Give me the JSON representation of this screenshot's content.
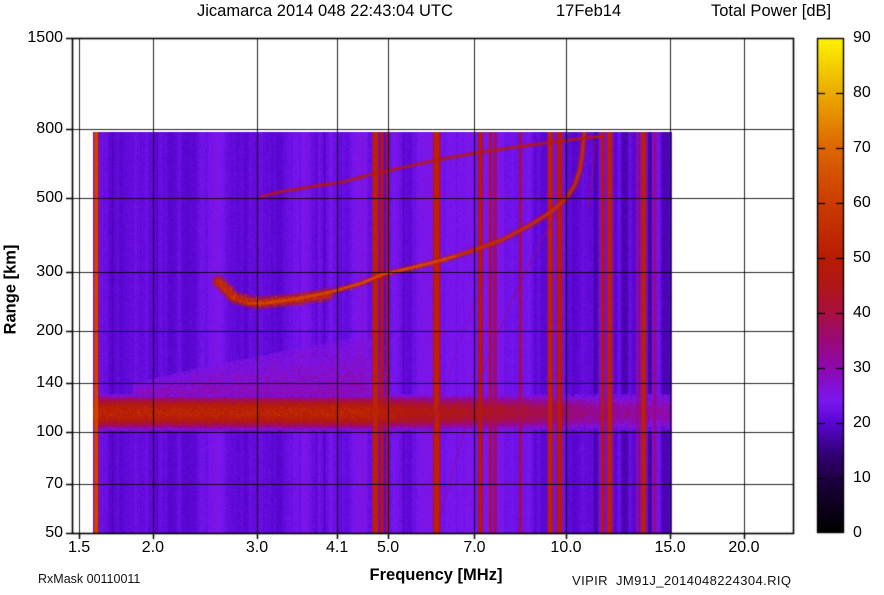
{
  "footer": {
    "rx_mask": "RxMask 00110011",
    "file": "VIPIR  JM91J_2014048224304.RIQ"
  },
  "chart_data": {
    "type": "heatmap",
    "subtype": "ionogram",
    "title": "Jicamarca 2014 048 22:43:04 UTC",
    "date_label": "17Feb14",
    "station": "Jicamarca",
    "xlabel": "Frequency [MHz]",
    "ylabel": "Range [km]",
    "x_scale": "log",
    "y_scale": "log",
    "grid": true,
    "x_ticks": [
      1.5,
      2.0,
      3.0,
      4.1,
      5.0,
      7.0,
      10.0,
      15.0,
      20.0
    ],
    "x_tick_labels": [
      "1.5",
      "2.0",
      "3.0",
      "4.1",
      "5.0",
      "7.0",
      "10.0",
      "15.0",
      "20.0"
    ],
    "x_range_mhz": [
      1.46,
      24.2
    ],
    "y_ticks": [
      50,
      70,
      100,
      140,
      200,
      300,
      500,
      800,
      1500
    ],
    "y_tick_labels": [
      "50",
      "70",
      "100",
      "140",
      "200",
      "300",
      "500",
      "800",
      "1500"
    ],
    "y_range_km": [
      50,
      1500
    ],
    "colorbar": {
      "title": "Total Power [dB]",
      "min": 0,
      "max": 90,
      "ticks": [
        0,
        10,
        20,
        30,
        40,
        50,
        60,
        70,
        80,
        90
      ],
      "tick_labels": [
        "0",
        "10",
        "20",
        "30",
        "40",
        "50",
        "60",
        "70",
        "80",
        "90"
      ],
      "palette": [
        {
          "db": 0,
          "color": "#000000"
        },
        {
          "db": 8,
          "color": "#170031"
        },
        {
          "db": 14,
          "color": "#300070"
        },
        {
          "db": 20,
          "color": "#5a06d2"
        },
        {
          "db": 24,
          "color": "#7a17f0"
        },
        {
          "db": 30,
          "color": "#8e08b0"
        },
        {
          "db": 36,
          "color": "#9c0a6e"
        },
        {
          "db": 40,
          "color": "#a81040"
        },
        {
          "db": 45,
          "color": "#b01616"
        },
        {
          "db": 50,
          "color": "#b81c04"
        },
        {
          "db": 60,
          "color": "#cc3c00"
        },
        {
          "db": 70,
          "color": "#dc6600"
        },
        {
          "db": 80,
          "color": "#ecaa00"
        },
        {
          "db": 90,
          "color": "#fdf500"
        }
      ]
    },
    "data_extent_mhz": [
      1.58,
      15.1
    ],
    "data_extent_km": [
      50,
      780
    ],
    "background_db": 22.5,
    "features": {
      "e_region_band": {
        "km": [
          103,
          128
        ],
        "mhz": [
          1.58,
          15.1
        ],
        "db_at_2mhz": 52,
        "db_at_8mhz": 42,
        "db_at_15mhz": 31
      },
      "sporadic_e_haze": {
        "mhz": [
          1.85,
          4.95
        ],
        "top_km_start": 140,
        "top_km_end": 195,
        "db": 28
      },
      "f_layer_trace": {
        "db": 57,
        "critical_freq_mhz": 10.7,
        "points": [
          [
            2.58,
            282
          ],
          [
            2.72,
            252
          ],
          [
            2.9,
            242
          ],
          [
            3.1,
            243
          ],
          [
            3.5,
            250
          ],
          [
            4.0,
            262
          ],
          [
            4.5,
            278
          ],
          [
            4.9,
            296
          ],
          [
            5.5,
            310
          ],
          [
            6.0,
            322
          ],
          [
            6.5,
            335
          ],
          [
            7.0,
            350
          ],
          [
            7.8,
            375
          ],
          [
            8.7,
            415
          ],
          [
            9.4,
            452
          ],
          [
            10.0,
            498
          ],
          [
            10.35,
            545
          ],
          [
            10.55,
            605
          ],
          [
            10.65,
            672
          ],
          [
            10.7,
            740
          ],
          [
            10.73,
            778
          ]
        ]
      },
      "f_trace_spread_blob": {
        "db": 55,
        "points": [
          [
            2.58,
            282
          ],
          [
            2.75,
            252
          ],
          [
            3.0,
            243
          ],
          [
            3.5,
            249
          ],
          [
            3.95,
            257
          ]
        ]
      },
      "second_hop_trace": {
        "db": 49,
        "points": [
          [
            3.05,
            505
          ],
          [
            3.25,
            520
          ],
          [
            3.7,
            540
          ],
          [
            4.2,
            558
          ],
          [
            4.6,
            583
          ],
          [
            5.2,
            612
          ],
          [
            5.7,
            635
          ],
          [
            6.4,
            662
          ],
          [
            7.2,
            685
          ],
          [
            8.0,
            705
          ],
          [
            9.0,
            725
          ],
          [
            10.0,
            742
          ],
          [
            10.9,
            757
          ],
          [
            11.5,
            762
          ]
        ]
      },
      "x_mode_cusp": {
        "db": 38,
        "points": [
          [
            10.9,
            470
          ],
          [
            11.05,
            560
          ],
          [
            11.15,
            660
          ],
          [
            11.2,
            740
          ]
        ]
      },
      "oblique_streaks": [
        {
          "db": 35,
          "points": [
            [
              6.1,
              55
            ],
            [
              7.1,
              140
            ],
            [
              8.1,
              248
            ],
            [
              9.0,
              360
            ],
            [
              9.7,
              460
            ]
          ]
        },
        {
          "db": 31,
          "points": [
            [
              5.9,
              100
            ],
            [
              6.7,
              200
            ],
            [
              7.6,
              330
            ]
          ]
        }
      ],
      "rfi_stripes": [
        {
          "mhz": 1.6,
          "px": 4,
          "db": 62
        },
        {
          "mhz": 4.75,
          "px": 6,
          "db": 52
        },
        {
          "mhz": 4.87,
          "px": 3,
          "db": 46
        },
        {
          "mhz": 4.98,
          "px": 2,
          "db": 44
        },
        {
          "mhz": 6.03,
          "px": 7,
          "db": 52
        },
        {
          "mhz": 7.15,
          "px": 4,
          "db": 48
        },
        {
          "mhz": 7.43,
          "px": 2,
          "db": 42
        },
        {
          "mhz": 7.57,
          "px": 2,
          "db": 40
        },
        {
          "mhz": 8.36,
          "px": 2,
          "db": 38
        },
        {
          "mhz": 9.39,
          "px": 5,
          "db": 52
        },
        {
          "mhz": 9.73,
          "px": 5,
          "db": 50
        },
        {
          "mhz": 11.51,
          "px": 3,
          "db": 48
        },
        {
          "mhz": 11.83,
          "px": 5,
          "db": 52
        },
        {
          "mhz": 13.2,
          "px": 2,
          "db": 34
        },
        {
          "mhz": 13.5,
          "px": 5,
          "db": 52
        },
        {
          "mhz": 14.1,
          "px": 3,
          "db": 33
        }
      ],
      "dark_bands": [
        {
          "mhz": 11.2,
          "px": 5,
          "db": 18
        },
        {
          "mhz": 12.1,
          "px": 3,
          "db": 20
        },
        {
          "mhz": 12.55,
          "px": 8,
          "db": 18
        },
        {
          "mhz": 13.85,
          "px": 4,
          "db": 17
        },
        {
          "mhz": 14.7,
          "px": 9,
          "db": 18
        }
      ]
    }
  }
}
